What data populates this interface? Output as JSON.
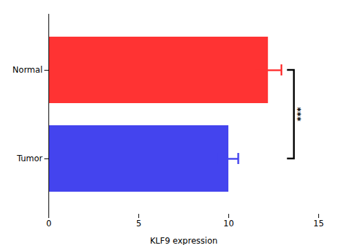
{
  "chart_data": {
    "type": "bar",
    "orientation": "horizontal",
    "categories": [
      "Normal",
      "Tumor"
    ],
    "values": [
      12.2,
      10.0
    ],
    "errors": [
      0.75,
      0.55
    ],
    "colors": [
      "#ff3333",
      "#4444ee"
    ],
    "xlabel": "KLF9 expression",
    "xlim": [
      0,
      15
    ],
    "xticks": [
      0,
      5,
      10,
      15
    ],
    "annotations": [
      "***"
    ]
  }
}
